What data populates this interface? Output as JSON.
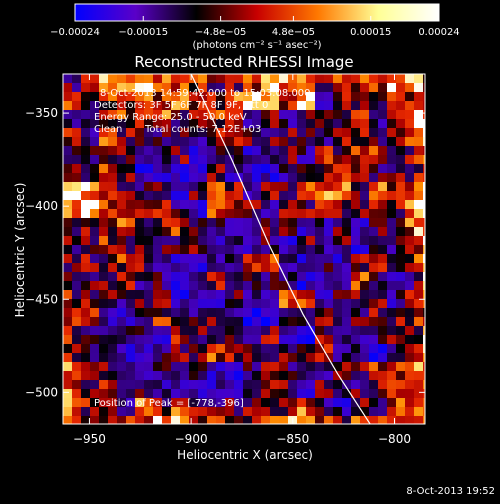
{
  "chart_data": {
    "type": "heatmap",
    "title": "Reconstructed RHESSI Image",
    "xlabel": "Heliocentric X (arcsec)",
    "ylabel": "Heliocentric Y (arcsec)",
    "xlim": [
      -963,
      -785
    ],
    "ylim": [
      -517,
      -329
    ],
    "xticks": [
      {
        "value": -950,
        "label": "−950"
      },
      {
        "value": -900,
        "label": "−900"
      },
      {
        "value": -850,
        "label": "−850"
      },
      {
        "value": -800,
        "label": "−800"
      }
    ],
    "yticks": [
      {
        "value": -350,
        "label": "−350"
      },
      {
        "value": -400,
        "label": "−400"
      },
      {
        "value": -450,
        "label": "−450"
      },
      {
        "value": -500,
        "label": "−500"
      }
    ],
    "colorbar": {
      "range": [
        -0.00024,
        0.00024
      ],
      "ticks": [
        {
          "value": -0.00024,
          "label": "−0.00024"
        },
        {
          "value": -0.00015,
          "label": "−0.00015"
        },
        {
          "value": -4.8e-05,
          "label": "−4.8e−05"
        },
        {
          "value": 4.8e-05,
          "label": "4.8e−05"
        },
        {
          "value": 0.00015,
          "label": "0.00015"
        },
        {
          "value": 0.00024,
          "label": "0.00024"
        }
      ],
      "label": "(photons cm⁻² s⁻¹ asec⁻²)",
      "colors": [
        "#0000ff",
        "#5a00c8",
        "#000000",
        "#c80000",
        "#ff7800",
        "#ffff96",
        "#ffffff"
      ]
    },
    "annotations": {
      "time_range": "8-Oct-2013 14:59:42.000 to 15:03:08.000",
      "detectors": "Detectors: 3F 5F 6F 7F 8F 9F, Att 0",
      "energy": "Energy Range: 25.0 - 50.0 keV",
      "method": "Clean",
      "counts": "Total counts: 7.12E+03",
      "peak": "Position of Peak = [-778,-396]"
    },
    "limb_curve": [
      [
        -900,
        -329
      ],
      [
        -880,
        -375
      ],
      [
        -862,
        -420
      ],
      [
        -845,
        -458
      ],
      [
        -828,
        -490
      ],
      [
        -812,
        -517
      ]
    ],
    "timestamp": "8-Oct-2013 19:52"
  }
}
